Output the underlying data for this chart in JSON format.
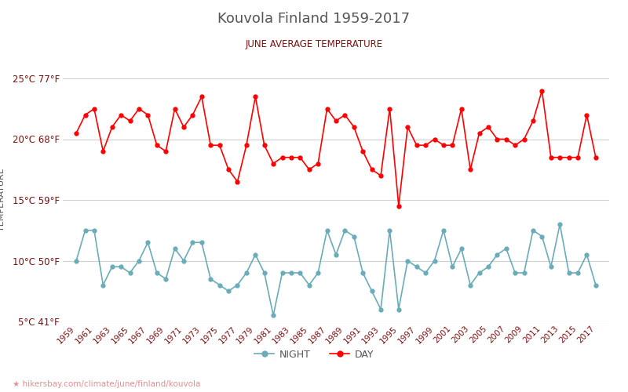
{
  "title": "Kouvola Finland 1959-2017",
  "subtitle": "JUNE AVERAGE TEMPERATURE",
  "ylabel": "TEMPERATURE",
  "xlabel_url": "hikersbay.com/climate/june/finland/kouvola",
  "ylim": [
    5,
    25
  ],
  "yticks_c": [
    5,
    10,
    15,
    20,
    25
  ],
  "yticks_labels": [
    "5°C 41°F",
    "10°C 50°F",
    "15°C 59°F",
    "20°C 68°F",
    "25°C 77°F"
  ],
  "years": [
    1959,
    1960,
    1961,
    1962,
    1963,
    1964,
    1965,
    1966,
    1967,
    1968,
    1969,
    1970,
    1971,
    1972,
    1973,
    1974,
    1975,
    1976,
    1977,
    1978,
    1979,
    1980,
    1981,
    1982,
    1983,
    1984,
    1985,
    1986,
    1987,
    1988,
    1989,
    1990,
    1991,
    1992,
    1993,
    1994,
    1995,
    1996,
    1997,
    1998,
    1999,
    2000,
    2001,
    2002,
    2003,
    2004,
    2005,
    2006,
    2007,
    2008,
    2009,
    2010,
    2011,
    2012,
    2013,
    2014,
    2015,
    2016,
    2017
  ],
  "day_temps": [
    20.5,
    22.0,
    22.5,
    19.0,
    21.0,
    22.0,
    21.5,
    22.5,
    22.0,
    19.5,
    19.0,
    22.5,
    21.0,
    22.0,
    23.5,
    19.5,
    19.5,
    17.5,
    16.5,
    19.5,
    23.5,
    19.5,
    18.0,
    18.5,
    18.5,
    18.5,
    17.5,
    18.0,
    22.5,
    21.5,
    22.0,
    21.0,
    19.0,
    17.5,
    17.0,
    22.5,
    14.5,
    21.0,
    19.5,
    19.5,
    20.0,
    19.5,
    19.5,
    22.5,
    17.5,
    20.5,
    21.0,
    20.0,
    20.0,
    19.5,
    20.0,
    21.5,
    24.0,
    18.5,
    18.5,
    18.5,
    18.5,
    22.0,
    18.5
  ],
  "night_temps": [
    10.0,
    12.5,
    12.5,
    8.0,
    9.5,
    9.5,
    9.0,
    10.0,
    11.5,
    9.0,
    8.5,
    11.0,
    10.0,
    11.5,
    11.5,
    8.5,
    8.0,
    7.5,
    8.0,
    9.0,
    10.5,
    9.0,
    5.5,
    9.0,
    9.0,
    9.0,
    8.0,
    9.0,
    12.5,
    10.5,
    12.5,
    12.0,
    9.0,
    7.5,
    6.0,
    12.5,
    6.0,
    10.0,
    9.5,
    9.0,
    10.0,
    12.5,
    9.5,
    11.0,
    8.0,
    9.0,
    9.5,
    10.5,
    11.0,
    9.0,
    9.0,
    12.5,
    12.0,
    9.5,
    13.0,
    9.0,
    9.0,
    10.5,
    8.0
  ],
  "day_color": "#ff0000",
  "night_color": "#6aacb8",
  "bg_color": "#ffffff",
  "grid_color": "#d0d0d0",
  "title_color": "#555555",
  "subtitle_color": "#7a1010",
  "ylabel_color": "#555555",
  "tick_color": "#7a1010",
  "url_color": "#e09090",
  "url_star_color": "#e8a000",
  "legend_night_label": "NIGHT",
  "legend_day_label": "DAY"
}
